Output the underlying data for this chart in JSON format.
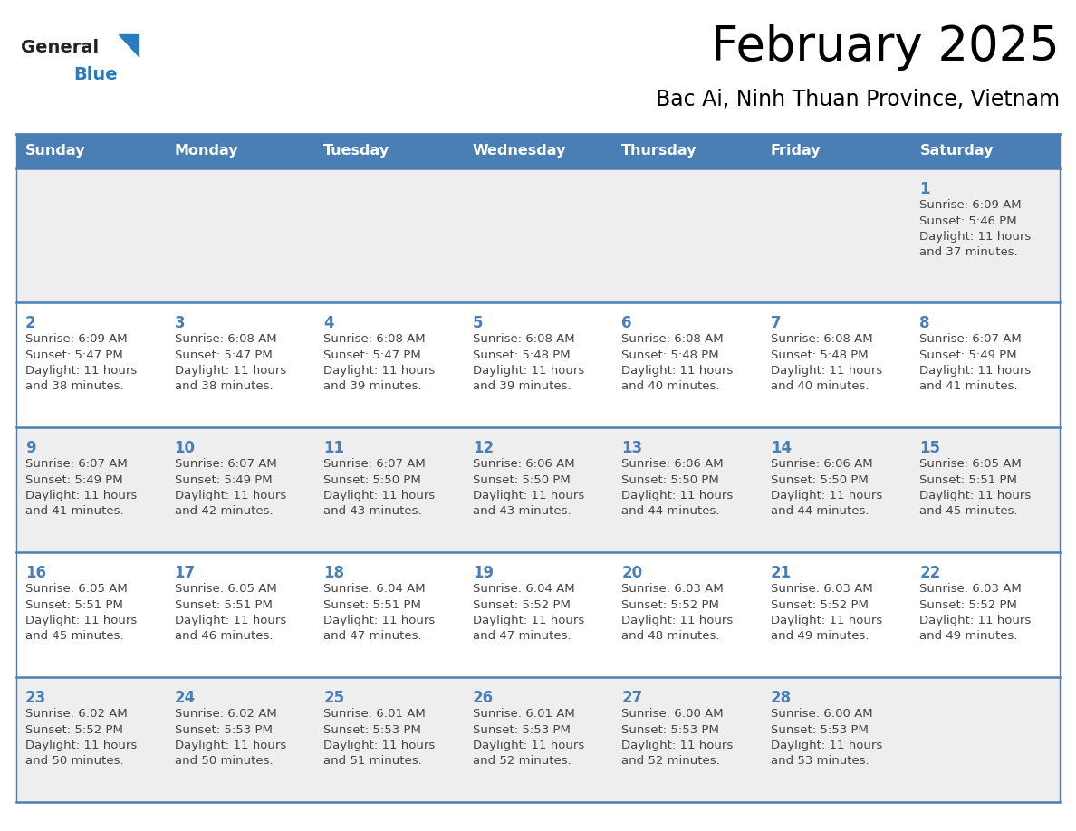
{
  "title": "February 2025",
  "subtitle": "Bac Ai, Ninh Thuan Province, Vietnam",
  "days_of_week": [
    "Sunday",
    "Monday",
    "Tuesday",
    "Wednesday",
    "Thursday",
    "Friday",
    "Saturday"
  ],
  "header_bg": "#4a7fb5",
  "header_text": "#ffffff",
  "row_bg": [
    "#eeeeee",
    "#ffffff",
    "#eeeeee",
    "#ffffff",
    "#eeeeee"
  ],
  "day_num_color": "#4a7fb5",
  "text_color": "#444444",
  "line_color": "#4a7fb5",
  "logo_general_color": "#222222",
  "logo_blue_color": "#2b7bbf",
  "calendar_data": [
    [
      null,
      null,
      null,
      null,
      null,
      null,
      {
        "day": 1,
        "sunrise": "6:09 AM",
        "sunset": "5:46 PM",
        "daylight": "11 hours",
        "daylight2": "and 37 minutes."
      }
    ],
    [
      {
        "day": 2,
        "sunrise": "6:09 AM",
        "sunset": "5:47 PM",
        "daylight": "11 hours",
        "daylight2": "and 38 minutes."
      },
      {
        "day": 3,
        "sunrise": "6:08 AM",
        "sunset": "5:47 PM",
        "daylight": "11 hours",
        "daylight2": "and 38 minutes."
      },
      {
        "day": 4,
        "sunrise": "6:08 AM",
        "sunset": "5:47 PM",
        "daylight": "11 hours",
        "daylight2": "and 39 minutes."
      },
      {
        "day": 5,
        "sunrise": "6:08 AM",
        "sunset": "5:48 PM",
        "daylight": "11 hours",
        "daylight2": "and 39 minutes."
      },
      {
        "day": 6,
        "sunrise": "6:08 AM",
        "sunset": "5:48 PM",
        "daylight": "11 hours",
        "daylight2": "and 40 minutes."
      },
      {
        "day": 7,
        "sunrise": "6:08 AM",
        "sunset": "5:48 PM",
        "daylight": "11 hours",
        "daylight2": "and 40 minutes."
      },
      {
        "day": 8,
        "sunrise": "6:07 AM",
        "sunset": "5:49 PM",
        "daylight": "11 hours",
        "daylight2": "and 41 minutes."
      }
    ],
    [
      {
        "day": 9,
        "sunrise": "6:07 AM",
        "sunset": "5:49 PM",
        "daylight": "11 hours",
        "daylight2": "and 41 minutes."
      },
      {
        "day": 10,
        "sunrise": "6:07 AM",
        "sunset": "5:49 PM",
        "daylight": "11 hours",
        "daylight2": "and 42 minutes."
      },
      {
        "day": 11,
        "sunrise": "6:07 AM",
        "sunset": "5:50 PM",
        "daylight": "11 hours",
        "daylight2": "and 43 minutes."
      },
      {
        "day": 12,
        "sunrise": "6:06 AM",
        "sunset": "5:50 PM",
        "daylight": "11 hours",
        "daylight2": "and 43 minutes."
      },
      {
        "day": 13,
        "sunrise": "6:06 AM",
        "sunset": "5:50 PM",
        "daylight": "11 hours",
        "daylight2": "and 44 minutes."
      },
      {
        "day": 14,
        "sunrise": "6:06 AM",
        "sunset": "5:50 PM",
        "daylight": "11 hours",
        "daylight2": "and 44 minutes."
      },
      {
        "day": 15,
        "sunrise": "6:05 AM",
        "sunset": "5:51 PM",
        "daylight": "11 hours",
        "daylight2": "and 45 minutes."
      }
    ],
    [
      {
        "day": 16,
        "sunrise": "6:05 AM",
        "sunset": "5:51 PM",
        "daylight": "11 hours",
        "daylight2": "and 45 minutes."
      },
      {
        "day": 17,
        "sunrise": "6:05 AM",
        "sunset": "5:51 PM",
        "daylight": "11 hours",
        "daylight2": "and 46 minutes."
      },
      {
        "day": 18,
        "sunrise": "6:04 AM",
        "sunset": "5:51 PM",
        "daylight": "11 hours",
        "daylight2": "and 47 minutes."
      },
      {
        "day": 19,
        "sunrise": "6:04 AM",
        "sunset": "5:52 PM",
        "daylight": "11 hours",
        "daylight2": "and 47 minutes."
      },
      {
        "day": 20,
        "sunrise": "6:03 AM",
        "sunset": "5:52 PM",
        "daylight": "11 hours",
        "daylight2": "and 48 minutes."
      },
      {
        "day": 21,
        "sunrise": "6:03 AM",
        "sunset": "5:52 PM",
        "daylight": "11 hours",
        "daylight2": "and 49 minutes."
      },
      {
        "day": 22,
        "sunrise": "6:03 AM",
        "sunset": "5:52 PM",
        "daylight": "11 hours",
        "daylight2": "and 49 minutes."
      }
    ],
    [
      {
        "day": 23,
        "sunrise": "6:02 AM",
        "sunset": "5:52 PM",
        "daylight": "11 hours",
        "daylight2": "and 50 minutes."
      },
      {
        "day": 24,
        "sunrise": "6:02 AM",
        "sunset": "5:53 PM",
        "daylight": "11 hours",
        "daylight2": "and 50 minutes."
      },
      {
        "day": 25,
        "sunrise": "6:01 AM",
        "sunset": "5:53 PM",
        "daylight": "11 hours",
        "daylight2": "and 51 minutes."
      },
      {
        "day": 26,
        "sunrise": "6:01 AM",
        "sunset": "5:53 PM",
        "daylight": "11 hours",
        "daylight2": "and 52 minutes."
      },
      {
        "day": 27,
        "sunrise": "6:00 AM",
        "sunset": "5:53 PM",
        "daylight": "11 hours",
        "daylight2": "and 52 minutes."
      },
      {
        "day": 28,
        "sunrise": "6:00 AM",
        "sunset": "5:53 PM",
        "daylight": "11 hours",
        "daylight2": "and 53 minutes."
      },
      null
    ]
  ]
}
